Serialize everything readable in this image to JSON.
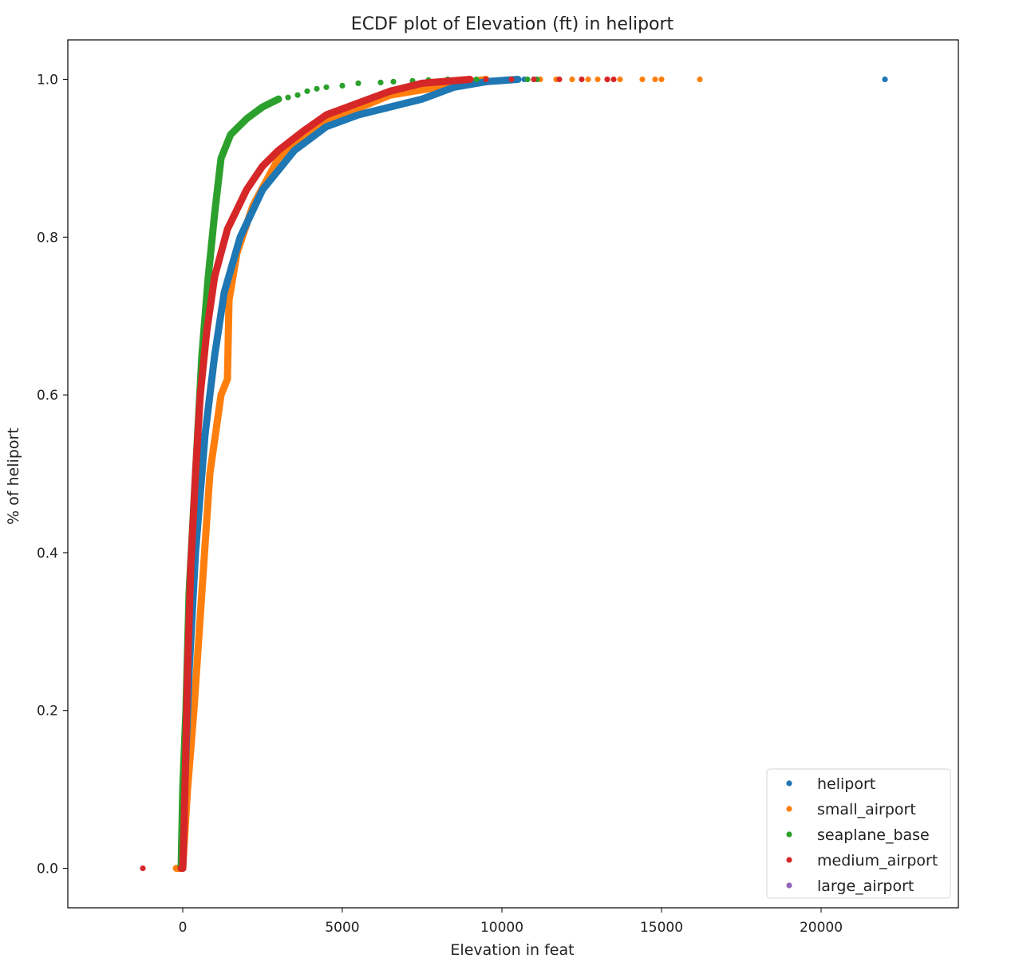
{
  "chart_data": {
    "type": "scatter",
    "title": "ECDF plot of Elevation (ft) in heliport",
    "xlabel": "Elevation in feat",
    "ylabel": "% of heliport",
    "xlim": [
      -3600,
      24300
    ],
    "ylim": [
      -0.05,
      1.05
    ],
    "xticks": [
      0,
      5000,
      10000,
      15000,
      20000
    ],
    "yticks": [
      0.0,
      0.2,
      0.4,
      0.6,
      0.8,
      1.0
    ],
    "xtick_labels": [
      "0",
      "5000",
      "10000",
      "15000",
      "20000"
    ],
    "ytick_labels": [
      "0.0",
      "0.2",
      "0.4",
      "0.6",
      "0.8",
      "1.0"
    ],
    "grid": false,
    "legend_position": "bottom-right",
    "series": [
      {
        "name": "heliport",
        "color": "#1f77b4",
        "curve": [
          [
            0,
            0
          ],
          [
            60,
            0.1
          ],
          [
            200,
            0.25
          ],
          [
            400,
            0.4
          ],
          [
            700,
            0.55
          ],
          [
            1000,
            0.65
          ],
          [
            1300,
            0.73
          ],
          [
            1800,
            0.8
          ],
          [
            2500,
            0.86
          ],
          [
            3500,
            0.91
          ],
          [
            4500,
            0.94
          ],
          [
            5500,
            0.955
          ],
          [
            6500,
            0.965
          ],
          [
            7500,
            0.975
          ],
          [
            8500,
            0.99
          ],
          [
            9500,
            0.997
          ],
          [
            10500,
            1.0
          ]
        ],
        "outliers": [
          [
            10700,
            1.0
          ],
          [
            11000,
            1.0
          ],
          [
            22000,
            1.0
          ]
        ]
      },
      {
        "name": "small_airport",
        "color": "#ff7f0e",
        "curve": [
          [
            -200,
            0
          ],
          [
            0,
            0
          ],
          [
            150,
            0.1
          ],
          [
            350,
            0.2
          ],
          [
            600,
            0.35
          ],
          [
            850,
            0.5
          ],
          [
            1200,
            0.6
          ],
          [
            1400,
            0.62
          ],
          [
            1450,
            0.72
          ],
          [
            1700,
            0.78
          ],
          [
            2200,
            0.84
          ],
          [
            3000,
            0.9
          ],
          [
            4000,
            0.935
          ],
          [
            5000,
            0.955
          ],
          [
            6500,
            0.98
          ],
          [
            8000,
            0.99
          ],
          [
            9500,
            1.0
          ]
        ],
        "outliers": [
          [
            11200,
            1.0
          ],
          [
            11700,
            1.0
          ],
          [
            12200,
            1.0
          ],
          [
            12700,
            1.0
          ],
          [
            13000,
            1.0
          ],
          [
            13300,
            1.0
          ],
          [
            13700,
            1.0
          ],
          [
            14400,
            1.0
          ],
          [
            14800,
            1.0
          ],
          [
            15000,
            1.0
          ],
          [
            16200,
            1.0
          ]
        ]
      },
      {
        "name": "seaplane_base",
        "color": "#2ca02c",
        "curve": [
          [
            -50,
            0
          ],
          [
            0,
            0.1
          ],
          [
            100,
            0.2
          ],
          [
            200,
            0.35
          ],
          [
            400,
            0.5
          ],
          [
            600,
            0.65
          ],
          [
            800,
            0.75
          ],
          [
            1000,
            0.83
          ],
          [
            1200,
            0.9
          ],
          [
            1500,
            0.93
          ],
          [
            2000,
            0.95
          ],
          [
            2500,
            0.965
          ],
          [
            3000,
            0.975
          ]
        ],
        "outliers": [
          [
            3300,
            0.977
          ],
          [
            3600,
            0.98
          ],
          [
            3900,
            0.985
          ],
          [
            4200,
            0.988
          ],
          [
            4500,
            0.99
          ],
          [
            5000,
            0.992
          ],
          [
            5500,
            0.995
          ],
          [
            6200,
            0.996
          ],
          [
            6600,
            0.997
          ],
          [
            7200,
            0.998
          ],
          [
            7700,
            0.999
          ],
          [
            8300,
            1.0
          ],
          [
            9200,
            1.0
          ],
          [
            10800,
            1.0
          ],
          [
            11100,
            1.0
          ]
        ]
      },
      {
        "name": "medium_airport",
        "color": "#d62728",
        "curve": [
          [
            -50,
            0
          ],
          [
            0,
            0
          ],
          [
            40,
            0.05
          ],
          [
            80,
            0.12
          ],
          [
            150,
            0.25
          ],
          [
            250,
            0.38
          ],
          [
            400,
            0.5
          ],
          [
            550,
            0.6
          ],
          [
            750,
            0.68
          ],
          [
            1000,
            0.75
          ],
          [
            1400,
            0.81
          ],
          [
            2000,
            0.86
          ],
          [
            2500,
            0.89
          ],
          [
            3000,
            0.91
          ],
          [
            3800,
            0.935
          ],
          [
            4500,
            0.955
          ],
          [
            5500,
            0.97
          ],
          [
            6500,
            0.985
          ],
          [
            7500,
            0.995
          ],
          [
            9000,
            1.0
          ]
        ],
        "outliers": [
          [
            -1250,
            0.0
          ],
          [
            9500,
            1.0
          ],
          [
            10300,
            1.0
          ],
          [
            11000,
            1.0
          ],
          [
            11800,
            1.0
          ],
          [
            12500,
            1.0
          ],
          [
            13300,
            1.0
          ],
          [
            13500,
            1.0
          ]
        ]
      },
      {
        "name": "large_airport",
        "color": "#9467bd",
        "curve": [],
        "outliers": []
      }
    ]
  }
}
